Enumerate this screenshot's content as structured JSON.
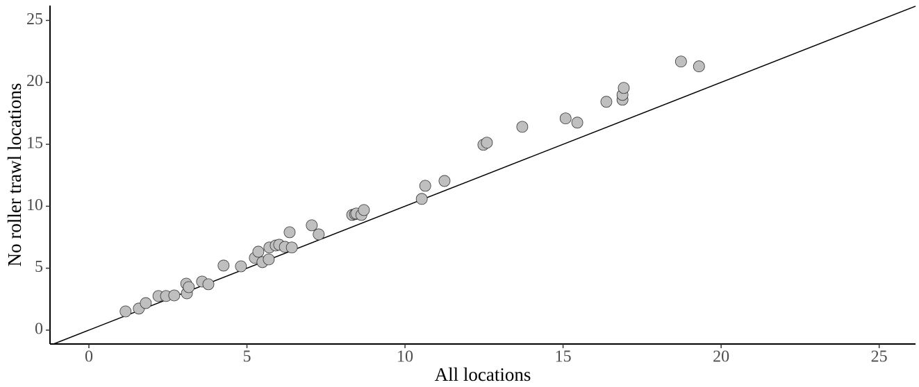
{
  "chart_data": {
    "type": "scatter",
    "x_label": "All locations",
    "y_label": "No roller trawl locations",
    "xlim": [
      -1.23,
      26.15
    ],
    "ylim": [
      -1.12,
      26.2
    ],
    "xticks": [
      0,
      5,
      10,
      15,
      20,
      25
    ],
    "yticks": [
      0,
      5,
      10,
      15,
      20,
      25
    ],
    "grid": false,
    "identity_line": true,
    "series": [
      {
        "color": "#bfbfbf",
        "x": [
          1.16,
          1.58,
          1.8,
          2.2,
          2.44,
          2.7,
          3.08,
          3.1,
          3.16,
          3.58,
          3.78,
          4.26,
          4.81,
          5.25,
          5.36,
          5.49,
          5.69,
          5.71,
          5.91,
          6.02,
          6.2,
          6.42,
          6.35,
          7.05,
          7.27,
          8.33,
          8.42,
          8.46,
          8.62,
          8.7,
          10.53,
          10.64,
          11.25,
          12.48,
          12.59,
          13.71,
          15.08,
          15.45,
          16.37,
          16.88,
          16.88,
          16.92,
          18.73,
          19.3
        ],
        "values": [
          1.51,
          1.74,
          2.18,
          2.75,
          2.75,
          2.8,
          3.75,
          2.97,
          3.47,
          3.92,
          3.7,
          5.21,
          5.15,
          5.83,
          6.33,
          5.49,
          5.71,
          6.67,
          6.83,
          6.89,
          6.72,
          6.67,
          7.9,
          8.46,
          7.73,
          9.3,
          9.36,
          9.41,
          9.3,
          9.69,
          10.59,
          11.65,
          12.04,
          14.96,
          15.13,
          16.41,
          17.09,
          16.75,
          18.43,
          18.6,
          18.99,
          19.55,
          21.68,
          21.29
        ]
      }
    ]
  }
}
